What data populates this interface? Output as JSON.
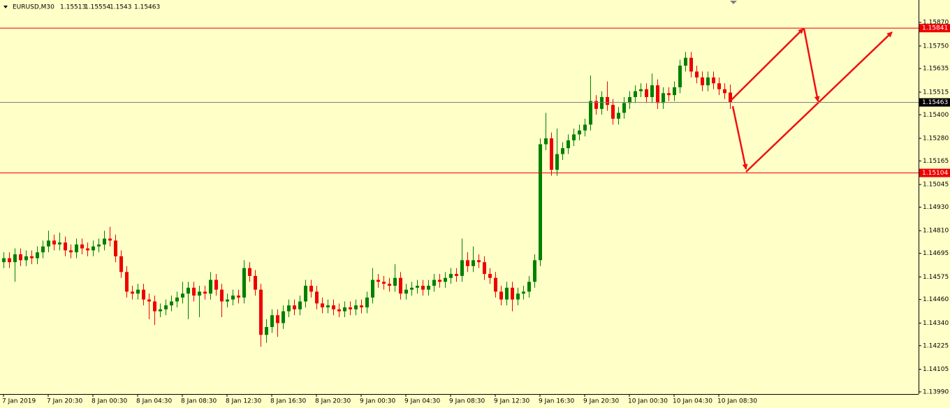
{
  "chart_data": {
    "type": "candlestick",
    "title": "EURUSD,M30",
    "categories": [
      "7 Jan 2019",
      null,
      null,
      null,
      null,
      null,
      null,
      null,
      "7 Jan 20:30",
      null,
      null,
      null,
      null,
      null,
      null,
      null,
      "8 Jan 00:30",
      null,
      null,
      null,
      null,
      null,
      null,
      null,
      "8 Jan 04:30",
      null,
      null,
      null,
      null,
      null,
      null,
      null,
      "8 Jan 08:30",
      null,
      null,
      null,
      null,
      null,
      null,
      null,
      "8 Jan 12:30",
      null,
      null,
      null,
      null,
      null,
      null,
      null,
      "8 Jan 16:30",
      null,
      null,
      null,
      null,
      null,
      null,
      null,
      "8 Jan 20:30",
      null,
      null,
      null,
      null,
      null,
      null,
      null,
      "9 Jan 00:30",
      null,
      null,
      null,
      null,
      null,
      null,
      null,
      "9 Jan 04:30",
      null,
      null,
      null,
      null,
      null,
      null,
      null,
      "9 Jan 08:30",
      null,
      null,
      null,
      null,
      null,
      null,
      null,
      "9 Jan 12:30",
      null,
      null,
      null,
      null,
      null,
      null,
      null,
      "9 Jan 16:30",
      null,
      null,
      null,
      null,
      null,
      null,
      null,
      "9 Jan 20:30",
      null,
      null,
      null,
      null,
      null,
      null,
      null,
      "10 Jan 00:30",
      null,
      null,
      null,
      null,
      null,
      null,
      null,
      "10 Jan 04:30",
      null,
      null,
      null,
      null,
      null,
      null,
      null,
      "10 Jan 08:30",
      null,
      null
    ],
    "open": [
      1.1465,
      1.1467,
      1.1465,
      1.1469,
      1.1466,
      1.1468,
      1.1467,
      1.147,
      1.1473,
      1.1476,
      1.1474,
      1.1475,
      1.1471,
      1.147,
      1.1474,
      1.1472,
      1.1471,
      1.1473,
      1.1474,
      1.1477,
      1.1476,
      1.1468,
      1.146,
      1.145,
      1.1449,
      1.1451,
      1.1446,
      1.1445,
      1.144,
      1.1441,
      1.1443,
      1.1445,
      1.1447,
      1.1449,
      1.1452,
      1.1448,
      1.145,
      1.1449,
      1.1456,
      1.1451,
      1.1445,
      1.1446,
      1.1448,
      1.1447,
      1.1462,
      1.1458,
      1.1451,
      1.1428,
      1.1432,
      1.1438,
      1.1434,
      1.144,
      1.1443,
      1.1441,
      1.1445,
      1.1453,
      1.145,
      1.1444,
      1.1442,
      1.1443,
      1.1441,
      1.144,
      1.1442,
      1.1441,
      1.1443,
      1.1442,
      1.1447,
      1.1456,
      1.1455,
      1.1454,
      1.1453,
      1.1457,
      1.1449,
      1.1451,
      1.1452,
      1.1453,
      1.1451,
      1.1453,
      1.1456,
      1.1455,
      1.1457,
      1.1459,
      1.1458,
      1.1466,
      1.1463,
      1.1466,
      1.1465,
      1.1459,
      1.1457,
      1.145,
      1.1446,
      1.1452,
      1.1446,
      1.1449,
      1.145,
      1.1455,
      1.1466,
      1.1525,
      1.1528,
      1.1512,
      1.152,
      1.1523,
      1.1527,
      1.153,
      1.1532,
      1.1535,
      1.1547,
      1.1543,
      1.1549,
      1.1545,
      1.1538,
      1.1541,
      1.1546,
      1.1549,
      1.1552,
      1.1553,
      1.1549,
      1.1555,
      1.1546,
      1.1551,
      1.155,
      1.1554,
      1.1565,
      1.1569,
      1.1562,
      1.1559,
      1.1555,
      1.1559,
      1.1556,
      1.1553,
      1.15513
    ],
    "high": [
      1.147,
      1.147,
      1.1472,
      1.1472,
      1.1471,
      1.1471,
      1.1473,
      1.1476,
      1.1481,
      1.1479,
      1.148,
      1.1478,
      1.1474,
      1.1477,
      1.1477,
      1.1475,
      1.1476,
      1.1477,
      1.1481,
      1.1483,
      1.1479,
      1.1471,
      1.1463,
      1.1453,
      1.1454,
      1.1454,
      1.1449,
      1.1448,
      1.1444,
      1.1446,
      1.1448,
      1.145,
      1.1455,
      1.1455,
      1.1455,
      1.1453,
      1.1453,
      1.146,
      1.1459,
      1.1454,
      1.1449,
      1.1451,
      1.1451,
      1.1466,
      1.1465,
      1.1461,
      1.1454,
      1.1436,
      1.1441,
      1.1441,
      1.1443,
      1.1446,
      1.1446,
      1.1448,
      1.1456,
      1.1456,
      1.1453,
      1.1447,
      1.1446,
      1.1446,
      1.1444,
      1.1445,
      1.1445,
      1.1446,
      1.1446,
      1.145,
      1.1462,
      1.1459,
      1.1458,
      1.1457,
      1.1464,
      1.146,
      1.1454,
      1.1455,
      1.1456,
      1.1456,
      1.1456,
      1.1459,
      1.1459,
      1.146,
      1.1462,
      1.1462,
      1.1477,
      1.147,
      1.1473,
      1.1469,
      1.1468,
      1.1462,
      1.146,
      1.1453,
      1.1455,
      1.1455,
      1.1452,
      1.1453,
      1.1458,
      1.1469,
      1.1528,
      1.1541,
      1.1531,
      1.1533,
      1.1526,
      1.153,
      1.1533,
      1.1535,
      1.1538,
      1.156,
      1.155,
      1.1552,
      1.1557,
      1.1548,
      1.1544,
      1.1549,
      1.1552,
      1.1555,
      1.1556,
      1.1556,
      1.1561,
      1.1558,
      1.1554,
      1.1554,
      1.1557,
      1.1568,
      1.1572,
      1.1572,
      1.1565,
      1.1562,
      1.1562,
      1.1562,
      1.1559,
      1.1556,
      1.15554
    ],
    "low": [
      1.1462,
      1.1462,
      1.1455,
      1.1463,
      1.1463,
      1.1464,
      1.1464,
      1.1467,
      1.147,
      1.1471,
      1.1471,
      1.1468,
      1.1467,
      1.1467,
      1.1469,
      1.1468,
      1.1468,
      1.147,
      1.1471,
      1.1473,
      1.1465,
      1.1457,
      1.1447,
      1.1446,
      1.1446,
      1.1443,
      1.1436,
      1.1433,
      1.1437,
      1.1438,
      1.144,
      1.1442,
      1.1444,
      1.1436,
      1.1445,
      1.1437,
      1.1446,
      1.1446,
      1.1448,
      1.1437,
      1.1442,
      1.1443,
      1.1444,
      1.1444,
      1.1455,
      1.1448,
      1.1422,
      1.1424,
      1.1429,
      1.1427,
      1.1431,
      1.1437,
      1.1438,
      1.1438,
      1.1442,
      1.1447,
      1.1441,
      1.1439,
      1.1439,
      1.1438,
      1.1437,
      1.1437,
      1.1438,
      1.1438,
      1.1439,
      1.1439,
      1.1444,
      1.1452,
      1.1451,
      1.145,
      1.145,
      1.1446,
      1.1446,
      1.1448,
      1.1449,
      1.1448,
      1.1448,
      1.145,
      1.1452,
      1.1452,
      1.1454,
      1.1455,
      1.1455,
      1.146,
      1.146,
      1.1462,
      1.1456,
      1.1454,
      1.1447,
      1.1443,
      1.1443,
      1.144,
      1.1443,
      1.1446,
      1.1447,
      1.1452,
      1.1463,
      1.1522,
      1.1509,
      1.1509,
      1.1517,
      1.152,
      1.1524,
      1.1527,
      1.1529,
      1.1532,
      1.154,
      1.154,
      1.1542,
      1.1535,
      1.1535,
      1.1538,
      1.1543,
      1.1546,
      1.1549,
      1.1546,
      1.1546,
      1.1543,
      1.1543,
      1.1547,
      1.1547,
      1.1551,
      1.1562,
      1.1559,
      1.1556,
      1.1552,
      1.1552,
      1.1553,
      1.155,
      1.1548,
      1.1543
    ],
    "close": [
      1.1467,
      1.1465,
      1.1469,
      1.1466,
      1.1468,
      1.1467,
      1.147,
      1.1473,
      1.1476,
      1.1474,
      1.1475,
      1.1471,
      1.147,
      1.1474,
      1.1472,
      1.1471,
      1.1473,
      1.1474,
      1.1477,
      1.1476,
      1.1468,
      1.146,
      1.145,
      1.1449,
      1.1451,
      1.1446,
      1.1445,
      1.144,
      1.1441,
      1.1443,
      1.1445,
      1.1447,
      1.1449,
      1.1452,
      1.1448,
      1.145,
      1.1449,
      1.1456,
      1.1451,
      1.1445,
      1.1446,
      1.1448,
      1.1447,
      1.1462,
      1.1458,
      1.1451,
      1.1428,
      1.1432,
      1.1438,
      1.1434,
      1.144,
      1.1443,
      1.1441,
      1.1445,
      1.1453,
      1.145,
      1.1444,
      1.1442,
      1.1443,
      1.1441,
      1.144,
      1.1442,
      1.1441,
      1.1443,
      1.1442,
      1.1447,
      1.1456,
      1.1455,
      1.1454,
      1.1453,
      1.1457,
      1.1449,
      1.1451,
      1.1452,
      1.1453,
      1.1451,
      1.1453,
      1.1456,
      1.1455,
      1.1457,
      1.1459,
      1.1458,
      1.1466,
      1.1463,
      1.1466,
      1.1465,
      1.1459,
      1.1457,
      1.145,
      1.1446,
      1.1452,
      1.1446,
      1.1449,
      1.145,
      1.1455,
      1.1466,
      1.1525,
      1.1528,
      1.1512,
      1.152,
      1.1523,
      1.1527,
      1.153,
      1.1532,
      1.1535,
      1.1547,
      1.1543,
      1.1549,
      1.1545,
      1.1538,
      1.1541,
      1.1546,
      1.1549,
      1.1552,
      1.1553,
      1.1549,
      1.1555,
      1.1546,
      1.1551,
      1.155,
      1.1554,
      1.1565,
      1.1569,
      1.1562,
      1.1559,
      1.1555,
      1.1559,
      1.1556,
      1.1553,
      1.1551,
      1.15463
    ],
    "up_color": "#008000",
    "down_color": "#ee0000",
    "ylim": [
      1.13979,
      1.15984
    ],
    "yticks": [
      {
        "value": 1.1587,
        "label": "1.15870"
      },
      {
        "value": 1.1575,
        "label": "1.15750"
      },
      {
        "value": 1.15635,
        "label": "1.15635"
      },
      {
        "value": 1.15515,
        "label": "1.15515"
      },
      {
        "value": 1.154,
        "label": "1.15400"
      },
      {
        "value": 1.1528,
        "label": "1.15280"
      },
      {
        "value": 1.15165,
        "label": "1.15165"
      },
      {
        "value": 1.15045,
        "label": "1.15045"
      },
      {
        "value": 1.1493,
        "label": "1.14930"
      },
      {
        "value": 1.1481,
        "label": "1.14810"
      },
      {
        "value": 1.14695,
        "label": "1.14695"
      },
      {
        "value": 1.14575,
        "label": "1.14575"
      },
      {
        "value": 1.1446,
        "label": "1.14460"
      },
      {
        "value": 1.1434,
        "label": "1.14340"
      },
      {
        "value": 1.14225,
        "label": "1.14225"
      },
      {
        "value": 1.14105,
        "label": "1.14105"
      },
      {
        "value": 1.1399,
        "label": "1.13990"
      }
    ],
    "hlines": [
      {
        "value": 1.15841,
        "color": "#ee0000"
      },
      {
        "value": 1.15463,
        "color": "#808080"
      },
      {
        "value": 1.15104,
        "color": "#ee0000"
      }
    ]
  }
}
